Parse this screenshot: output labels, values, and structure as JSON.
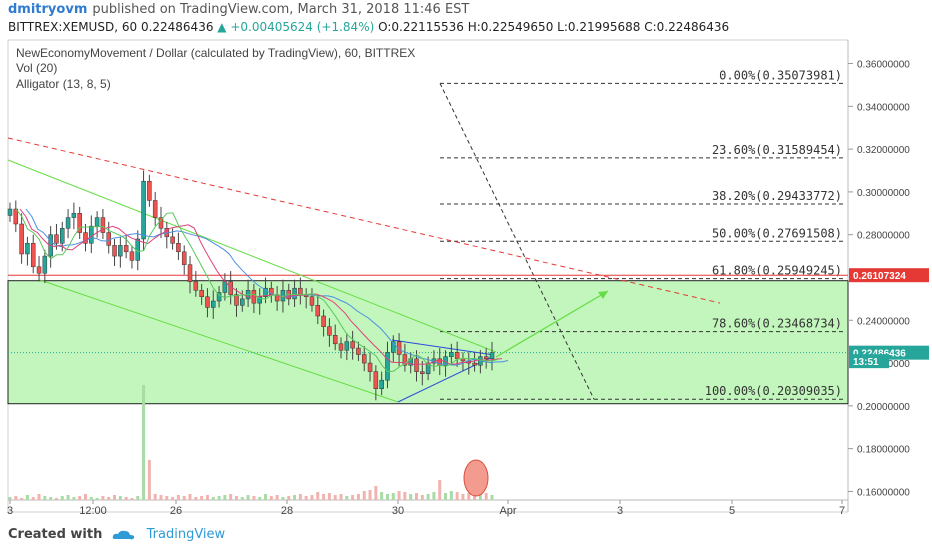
{
  "header": {
    "author": "dmitryovm",
    "published_text": "published on TradingView.com, March 31, 2018 11:46 EST",
    "symbol_line": "BITTREX:XEMUSD, 60",
    "last": "0.22486436",
    "change": "▲ +0.00405624 (+1.84%)",
    "ohlc": "O:0.22115536 H:0.22549650 L:0.21995688 C:0.22486436"
  },
  "legend": {
    "title": "NewEconomyMovement / Dollar (calculated by TradingView), 60, BITTREX",
    "vol": "Vol (20)",
    "alligator": "Alligator (13, 8, 5)"
  },
  "footer": {
    "created_with": "Created with",
    "brand": "TradingView"
  },
  "colors": {
    "candle_up": "#26a69a",
    "candle_down": "#ef5350",
    "green_zone": "#b7f5b0",
    "channel": "#66dd44",
    "triangle": "#2a4bdd",
    "resistance": "#e53935",
    "current_price": "#26a69a"
  },
  "chart_data": {
    "type": "candlestick",
    "y_axis": {
      "ticks": [
        "0.36000000",
        "0.34000000",
        "0.32000000",
        "0.30000000",
        "0.28000000",
        "0.24000000",
        "0.22000000",
        "0.20000000",
        "0.18000000",
        "0.16000000"
      ],
      "range": [
        0.156,
        0.371
      ]
    },
    "x_axis": {
      "ticks": [
        "3",
        "12:00",
        "26",
        "28",
        "30",
        "Apr",
        "3",
        "5",
        "7"
      ]
    },
    "fib_levels": [
      {
        "label": "0.00%(0.35073981)",
        "value": 0.35073981
      },
      {
        "label": "23.60%(0.31589454)",
        "value": 0.31589454
      },
      {
        "label": "38.20%(0.29433772)",
        "value": 0.29433772
      },
      {
        "label": "50.00%(0.27691508)",
        "value": 0.27691508
      },
      {
        "label": "61.80%(0.25949245)",
        "value": 0.25949245
      },
      {
        "label": "78.60%(0.23468734)",
        "value": 0.23468734
      },
      {
        "label": "100.00%(0.20309035)",
        "value": 0.20309035
      }
    ],
    "price_labels": [
      {
        "label": "0.26107324",
        "value": 0.26107324,
        "color": "#e53935"
      },
      {
        "label": "0.22486436",
        "value": 0.22486436,
        "color": "#26a69a"
      },
      {
        "label": "13:51",
        "value": 0.2209,
        "color": "#26a69a"
      }
    ],
    "green_zone": [
      0.201,
      0.2585
    ],
    "close_path": [
      0.292,
      0.285,
      0.271,
      0.276,
      0.265,
      0.262,
      0.27,
      0.28,
      0.276,
      0.283,
      0.288,
      0.29,
      0.281,
      0.276,
      0.284,
      0.288,
      0.281,
      0.275,
      0.27,
      0.275,
      0.272,
      0.268,
      0.278,
      0.305,
      0.296,
      0.288,
      0.283,
      0.279,
      0.276,
      0.272,
      0.266,
      0.258,
      0.254,
      0.251,
      0.246,
      0.249,
      0.253,
      0.258,
      0.252,
      0.247,
      0.25,
      0.254,
      0.248,
      0.251,
      0.255,
      0.252,
      0.249,
      0.254,
      0.25,
      0.255,
      0.252,
      0.251,
      0.247,
      0.242,
      0.237,
      0.233,
      0.229,
      0.226,
      0.23,
      0.227,
      0.224,
      0.22,
      0.216,
      0.208,
      0.212,
      0.225,
      0.23,
      0.224,
      0.219,
      0.222,
      0.216,
      0.215,
      0.22,
      0.222,
      0.219,
      0.223,
      0.225,
      0.222,
      0.221,
      0.22,
      0.219,
      0.223,
      0.222,
      0.2249
    ]
  }
}
